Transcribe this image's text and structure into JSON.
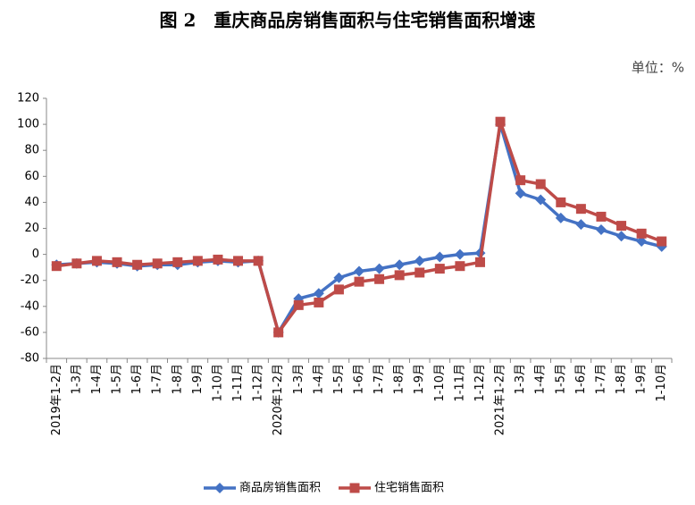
{
  "chart_data": {
    "type": "line",
    "title": "图 2　重庆商品房销售面积与住宅销售面积增速",
    "unit": "单位：%",
    "categories": [
      "2019年1-2月",
      "1-3月",
      "1-4月",
      "1-5月",
      "1-6月",
      "1-7月",
      "1-8月",
      "1-9月",
      "1-10月",
      "1-11月",
      "1-12月",
      "2020年1-2月",
      "1-3月",
      "1-4月",
      "1-5月",
      "1-6月",
      "1-7月",
      "1-8月",
      "1-9月",
      "1-10月",
      "1-11月",
      "1-12月",
      "2021年1-2月",
      "1-3月",
      "1-4月",
      "1-5月",
      "1-6月",
      "1-7月",
      "1-8月",
      "1-9月",
      "1-10月"
    ],
    "series": [
      {
        "name": "商品房销售面积",
        "color": "#4472c4",
        "marker": "diamond",
        "values": [
          -8,
          -7,
          -6,
          -7,
          -9,
          -8,
          -8,
          -6,
          -5,
          -6,
          -5,
          -60,
          -34,
          -30,
          -18,
          -13,
          -11,
          -8,
          -5,
          -2,
          0,
          1,
          100,
          47,
          42,
          28,
          23,
          19,
          14,
          10,
          6
        ]
      },
      {
        "name": "住宅销售面积",
        "color": "#be4b48",
        "marker": "square",
        "values": [
          -9,
          -7,
          -5,
          -6,
          -8,
          -7,
          -6,
          -5,
          -4,
          -5,
          -5,
          -60,
          -39,
          -37,
          -27,
          -21,
          -19,
          -16,
          -14,
          -11,
          -9,
          -6,
          102,
          57,
          54,
          40,
          35,
          29,
          22,
          16,
          10
        ]
      }
    ],
    "ylim": [
      -80,
      120
    ],
    "yticks": [
      -80,
      -60,
      -40,
      -20,
      0,
      20,
      40,
      60,
      80,
      100,
      120
    ],
    "grid": false,
    "legend": "bottom"
  }
}
